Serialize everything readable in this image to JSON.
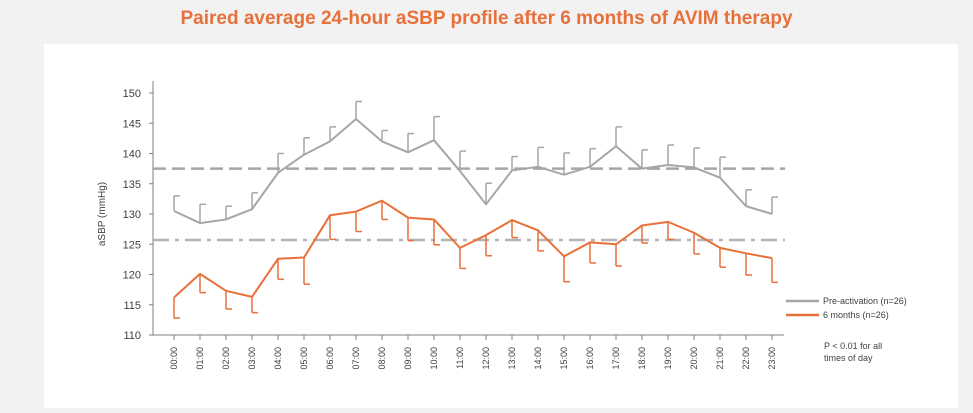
{
  "title": "Paired average 24-hour aSBP profile after 6 months of AVIM therapy",
  "note": "P < 0.01 for all times of day",
  "colors": {
    "title": "#e8703a",
    "pre": "#a6a6a6",
    "post": "#e8703a",
    "axis": "#7f7f7f",
    "text": "#404040"
  },
  "chart_data": {
    "type": "line",
    "title": "Paired average 24-hour aSBP profile after 6 months of AVIM therapy",
    "xlabel": "",
    "ylabel": "aSBP (mmHg)",
    "ylim": [
      110,
      150
    ],
    "yticks": [
      110,
      115,
      120,
      125,
      130,
      135,
      140,
      145,
      150
    ],
    "grid": false,
    "legend_position": "right",
    "categories": [
      "00:00",
      "01:00",
      "02:00",
      "03:00",
      "04:00",
      "05:00",
      "06:00",
      "07:00",
      "08:00",
      "09:00",
      "10:00",
      "11:00",
      "12:00",
      "13:00",
      "14:00",
      "15:00",
      "16:00",
      "17:00",
      "18:00",
      "19:00",
      "20:00",
      "21:00",
      "22:00",
      "23:00"
    ],
    "series": [
      {
        "name": "Pre-activation (n=26)",
        "color": "#a6a6a6",
        "values": [
          130.5,
          128.5,
          129.1,
          130.8,
          136.8,
          139.8,
          142.0,
          145.7,
          142.0,
          140.2,
          142.2,
          137.1,
          131.6,
          137.2,
          137.8,
          136.5,
          137.8,
          141.2,
          137.5,
          138.1,
          137.7,
          136.0,
          131.3,
          130.0
        ],
        "error_upper": [
          133.0,
          131.6,
          131.3,
          133.5,
          140.0,
          142.6,
          144.4,
          148.6,
          143.8,
          143.3,
          146.1,
          140.4,
          135.1,
          139.5,
          141.0,
          140.1,
          140.8,
          144.4,
          140.6,
          141.4,
          140.9,
          139.4,
          134.0,
          132.8
        ],
        "mean_line": 137.5,
        "mean_line_style": "dashed"
      },
      {
        "name": "6 months (n=26)",
        "color": "#e8703a",
        "values": [
          116.2,
          120.1,
          117.3,
          116.3,
          122.6,
          122.8,
          129.8,
          130.4,
          132.2,
          129.4,
          129.1,
          124.4,
          126.5,
          129.0,
          127.3,
          123.0,
          125.3,
          125.0,
          128.1,
          128.7,
          126.9,
          124.4,
          123.5,
          122.7
        ],
        "error_lower": [
          112.8,
          117.0,
          114.3,
          113.7,
          119.2,
          118.4,
          125.8,
          127.1,
          129.1,
          125.6,
          124.9,
          121.0,
          123.1,
          126.1,
          123.9,
          118.8,
          121.9,
          121.4,
          125.2,
          125.8,
          123.4,
          121.2,
          119.9,
          118.7
        ],
        "mean_line": 125.7,
        "mean_line_style": "dash-dot"
      }
    ]
  }
}
